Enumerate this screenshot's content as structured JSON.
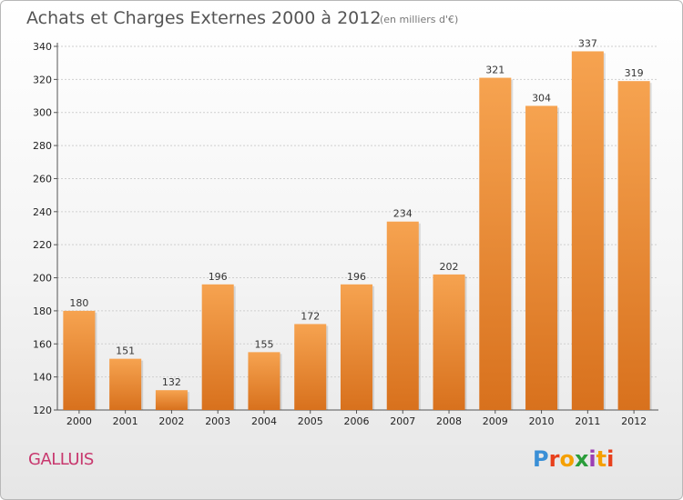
{
  "header": {
    "title": "Achats et Charges Externes 2000 à 2012",
    "subtitle": "(en milliers d'€)"
  },
  "footer": {
    "commune": "GALLUIS",
    "logo_text": "Proxiti",
    "logo_colors": [
      "#3a8fd6",
      "#e8401c",
      "#f5a000",
      "#2a9d3a",
      "#9c3fb4",
      "#f5a000",
      "#e8401c"
    ]
  },
  "colors": {
    "bar_light": "#f6a350",
    "bar_dark": "#d8711d",
    "grid": "#cfcfcf"
  },
  "chart_data": {
    "type": "bar",
    "categories": [
      "2000",
      "2001",
      "2002",
      "2003",
      "2004",
      "2005",
      "2006",
      "2007",
      "2008",
      "2009",
      "2010",
      "2011",
      "2012"
    ],
    "values": [
      180,
      151,
      132,
      196,
      155,
      172,
      196,
      234,
      202,
      321,
      304,
      337,
      319
    ],
    "data_labels": [
      "180",
      "151",
      "132",
      "196",
      "155",
      "172",
      "196",
      "234",
      "202",
      "321",
      "304",
      "337",
      "319"
    ],
    "ylim": [
      120,
      340
    ],
    "yticks": [
      "120",
      "140",
      "160",
      "180",
      "200",
      "220",
      "240",
      "260",
      "280",
      "300",
      "320",
      "340"
    ],
    "grid": true,
    "legend": "none"
  }
}
